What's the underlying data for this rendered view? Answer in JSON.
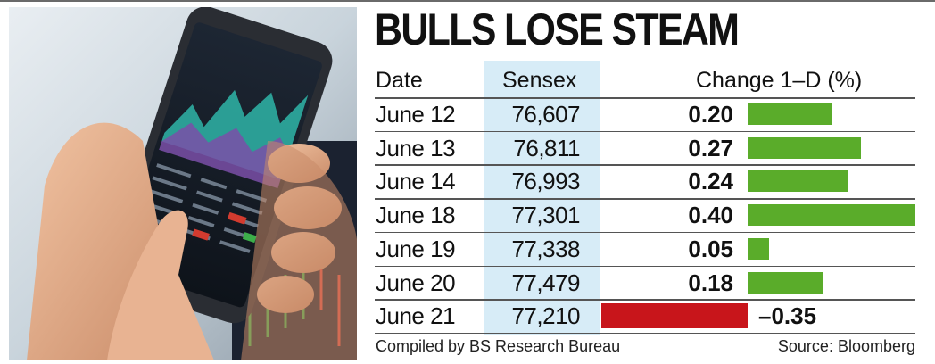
{
  "title": "BULLS LOSE STEAM",
  "headers": {
    "date": "Date",
    "sensex": "Sensex",
    "change": "Change 1–D (%)"
  },
  "rows": [
    {
      "date": "June 12",
      "sensex": "76,607",
      "change": "0.20"
    },
    {
      "date": "June 13",
      "sensex": "76,811",
      "change": "0.27"
    },
    {
      "date": "June 14",
      "sensex": "76,993",
      "change": "0.24"
    },
    {
      "date": "June 18",
      "sensex": "77,301",
      "change": "0.40"
    },
    {
      "date": "June 19",
      "sensex": "77,338",
      "change": "0.05"
    },
    {
      "date": "June 20",
      "sensex": "77,479",
      "change": "0.18"
    },
    {
      "date": "June 21",
      "sensex": "77,210",
      "change": "–0.35"
    }
  ],
  "footer": {
    "left": "Compiled by BS Research Bureau",
    "right": "Source: Bloomberg"
  },
  "colors": {
    "positive": "#5aac2a",
    "negative": "#c8151b",
    "sensex_bg": "#d7ecf7"
  },
  "chart_data": {
    "type": "bar",
    "orientation": "horizontal",
    "title": "BULLS LOSE STEAM",
    "categories": [
      "June 12",
      "June 13",
      "June 14",
      "June 18",
      "June 19",
      "June 20",
      "June 21"
    ],
    "series": [
      {
        "name": "Change 1–D (%)",
        "values": [
          0.2,
          0.27,
          0.24,
          0.4,
          0.05,
          0.18,
          -0.35
        ]
      }
    ],
    "table_columns": [
      "Date",
      "Sensex",
      "Change 1–D (%)"
    ],
    "sensex": [
      76607,
      76811,
      76993,
      77301,
      77338,
      77479,
      77210
    ]
  }
}
